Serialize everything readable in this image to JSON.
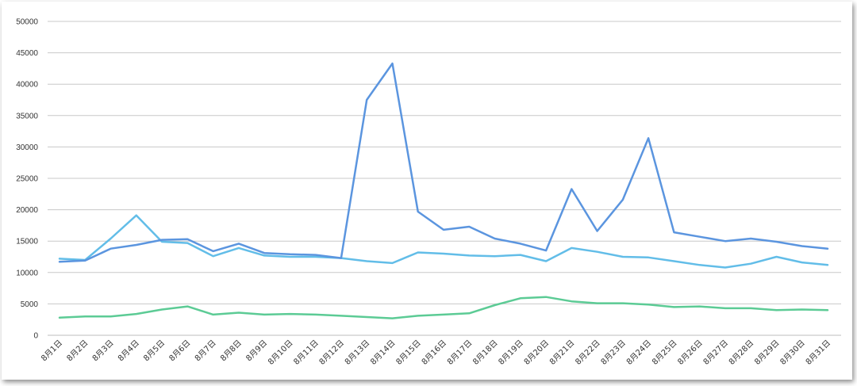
{
  "chart_data": {
    "type": "line",
    "title": "",
    "xlabel": "",
    "ylabel": "",
    "ylim": [
      0,
      50000
    ],
    "y_ticks": [
      0,
      5000,
      10000,
      15000,
      20000,
      25000,
      30000,
      35000,
      40000,
      45000,
      50000
    ],
    "grid": true,
    "legend": "none",
    "categories": [
      "8月1日",
      "8月2日",
      "8月3日",
      "8月4日",
      "8月5日",
      "8月6日",
      "8月7日",
      "8月8日",
      "8月9日",
      "8月10日",
      "8月11日",
      "8月12日",
      "8月13日",
      "8月14日",
      "8月15日",
      "8月16日",
      "8月17日",
      "8月18日",
      "8月19日",
      "8月20日",
      "8月21日",
      "8月22日",
      "8月23日",
      "8月24日",
      "8月25日",
      "8月26日",
      "8月27日",
      "8月28日",
      "8月29日",
      "8月30日",
      "8月31日"
    ],
    "series": [
      {
        "color": "#5b95df",
        "values": [
          11700,
          11900,
          13800,
          14400,
          15200,
          15300,
          13400,
          14600,
          13100,
          12900,
          12800,
          12300,
          37500,
          43300,
          19700,
          16800,
          17300,
          15400,
          14600,
          13500,
          23300,
          16600,
          21600,
          31400,
          16400,
          15700,
          15000,
          15400,
          14900,
          14200,
          13800
        ]
      },
      {
        "color": "#62bde8",
        "values": [
          12200,
          12000,
          15400,
          19100,
          14900,
          14700,
          12600,
          13900,
          12700,
          12500,
          12500,
          12300,
          11800,
          11500,
          13200,
          13000,
          12700,
          12600,
          12800,
          11800,
          13900,
          13300,
          12500,
          12400,
          11800,
          11200,
          10800,
          11400,
          12500,
          11600,
          11200
        ]
      },
      {
        "color": "#5ccb95",
        "values": [
          2800,
          3000,
          3000,
          3400,
          4100,
          4600,
          3300,
          3600,
          3300,
          3400,
          3300,
          3100,
          2900,
          2700,
          3100,
          3300,
          3500,
          4800,
          5900,
          6100,
          5400,
          5100,
          5100,
          4900,
          4500,
          4600,
          4300,
          4300,
          4000,
          4100,
          4000
        ]
      }
    ]
  }
}
